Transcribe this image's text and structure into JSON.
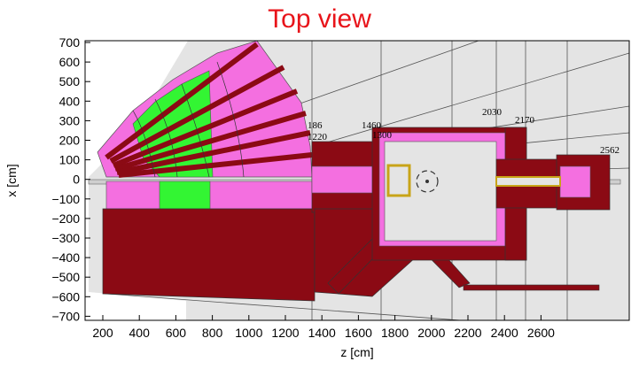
{
  "title": "Top view",
  "axes": {
    "xlabel": "z [cm]",
    "ylabel": "x [cm]",
    "x_ticks": [
      "200",
      "400",
      "600",
      "800",
      "1000",
      "1200",
      "1400",
      "1600",
      "1800",
      "2000",
      "2200",
      "2400",
      "2600"
    ],
    "y_ticks": [
      "700",
      "600",
      "500",
      "400",
      "300",
      "200",
      "100",
      "0",
      "−100",
      "−200",
      "−300",
      "−400",
      "−500",
      "−600",
      "−700"
    ]
  },
  "annotations": [
    "186",
    "1220",
    "1460",
    "1300",
    "2030",
    "2170",
    "2562"
  ],
  "colors": {
    "dark_red": "#8b0a14",
    "magenta": "#f46fe0",
    "green": "#33f533",
    "light_gray": "#e4e4e4",
    "gold": "#c8a418",
    "title_red": "#e8141a"
  }
}
